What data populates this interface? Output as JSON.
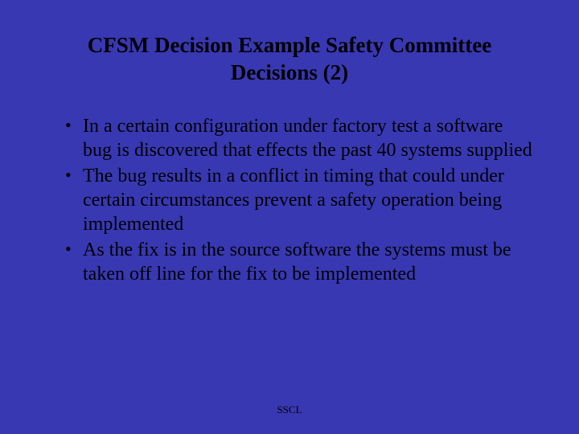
{
  "slide": {
    "background_color": "#3838b3",
    "text_color": "#000000",
    "font_family": "Times New Roman",
    "title": "CFSM Decision Example Safety Committee Decisions (2)",
    "title_fontsize": 27,
    "body_fontsize": 24,
    "footer_fontsize": 13,
    "bullets": [
      "In a certain configuration under factory test a software bug is discovered that effects the past 40 systems supplied",
      "The bug results in a conflict in timing that could under certain circumstances prevent a safety operation being implemented",
      "As the fix is in the source software the systems must be taken off line for the fix to be implemented"
    ],
    "footer": "SSCL"
  }
}
